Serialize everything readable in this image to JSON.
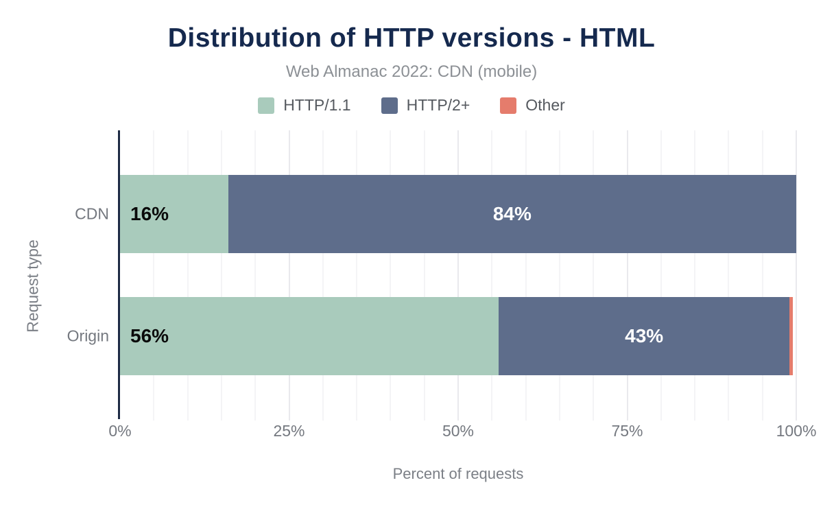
{
  "title": "Distribution of HTTP versions - HTML",
  "subtitle": "Web Almanac 2022: CDN (mobile)",
  "legend": [
    {
      "label": "HTTP/1.1",
      "color": "#a9cbbc"
    },
    {
      "label": "HTTP/2+",
      "color": "#5e6d8b"
    },
    {
      "label": "Other",
      "color": "#e57c6c"
    }
  ],
  "colors": {
    "title": "#15294e",
    "subtitle": "#8c9095",
    "axis_line": "#1e2b45",
    "label_gray": "#74787f",
    "series_green": "#a9cbbc",
    "series_blue": "#5e6d8b",
    "series_red": "#e57c6c"
  },
  "chart_data": {
    "type": "bar",
    "orientation": "horizontal",
    "stacked": true,
    "title": "Distribution of HTTP versions - HTML",
    "subtitle": "Web Almanac 2022: CDN (mobile)",
    "categories": [
      "CDN",
      "Origin"
    ],
    "series": [
      {
        "name": "HTTP/1.1",
        "color": "#a9cbbc",
        "values": [
          16,
          56
        ]
      },
      {
        "name": "HTTP/2+",
        "color": "#5e6d8b",
        "values": [
          84,
          43
        ]
      },
      {
        "name": "Other",
        "color": "#e57c6c",
        "values": [
          0,
          0.5
        ]
      }
    ],
    "bar_labels": [
      [
        "16%",
        "84%",
        ""
      ],
      [
        "56%",
        "43%",
        ""
      ]
    ],
    "xlabel": "Percent of requests",
    "ylabel": "Request type",
    "xticks": [
      "0%",
      "25%",
      "50%",
      "75%",
      "100%"
    ],
    "xlim": [
      0,
      100
    ],
    "grid": "vertical gridlines every 5%, emphasized every 25%",
    "legend_position": "top"
  }
}
